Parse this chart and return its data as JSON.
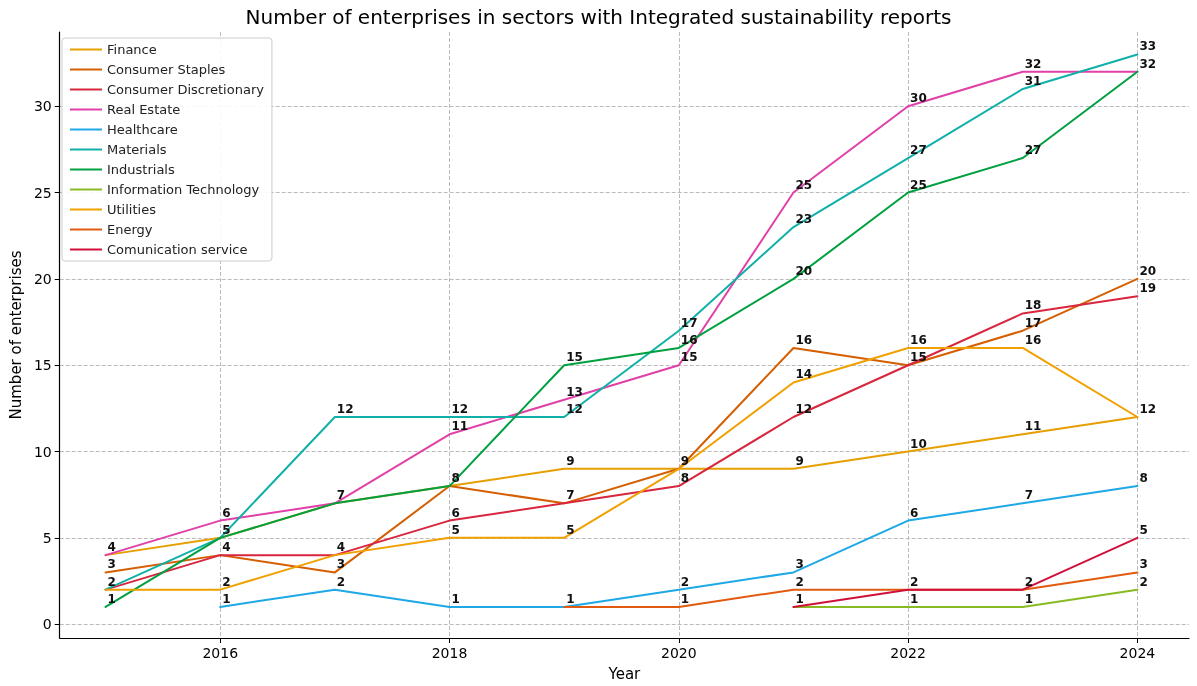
{
  "chart_data": {
    "type": "line",
    "title": "Number of enterprises in sectors with Integrated sustainability reports",
    "xlabel": "Year",
    "ylabel": "Number of enterprises",
    "x": [
      2015,
      2016,
      2017,
      2018,
      2019,
      2020,
      2021,
      2022,
      2023,
      2024
    ],
    "xlim": [
      2014.6,
      2024.45
    ],
    "xticks": [
      2016,
      2018,
      2020,
      2022,
      2024
    ],
    "ylim": [
      -0.8,
      34.3
    ],
    "yticks": [
      0,
      5,
      10,
      15,
      20,
      25,
      30
    ],
    "grid": true,
    "legend": "top left",
    "line_style": "solid",
    "series": [
      {
        "name": "Finance",
        "color": "#e69f00",
        "values": [
          4,
          5,
          7,
          8,
          9,
          9,
          9,
          10,
          11,
          12
        ],
        "value_labels": [
          "4",
          "5",
          "7",
          "8",
          "9",
          "9",
          "9",
          "10",
          "11",
          "12"
        ]
      },
      {
        "name": "Consumer Staples",
        "color": "#d55e00",
        "values": [
          3,
          4,
          3,
          8,
          7,
          9,
          16,
          15,
          17,
          20
        ],
        "value_labels": [
          "3",
          "4",
          "3",
          null,
          "7",
          null,
          "16",
          "15",
          "17",
          "20"
        ]
      },
      {
        "name": "Consumer Discretionary",
        "color": "#d7263d",
        "values": [
          2,
          4,
          4,
          6,
          7,
          8,
          12,
          15,
          18,
          19
        ],
        "value_labels": [
          "2",
          null,
          "4",
          "6",
          null,
          "8",
          "12",
          null,
          "18",
          "19"
        ]
      },
      {
        "name": "Real Estate",
        "color": "#e040a8",
        "values": [
          4,
          6,
          7,
          11,
          13,
          15,
          25,
          30,
          32,
          32
        ],
        "value_labels": [
          null,
          "6",
          null,
          "11",
          "13",
          "15",
          "25",
          "30",
          "32",
          "32"
        ]
      },
      {
        "name": "Healthcare",
        "color": "#1ea8e6",
        "values": [
          null,
          1,
          2,
          1,
          1,
          2,
          3,
          6,
          7,
          8
        ],
        "value_labels": [
          null,
          "1",
          "2",
          "1",
          "1",
          "2",
          "3",
          "6",
          "7",
          "8"
        ]
      },
      {
        "name": "Materials",
        "color": "#10b0a8",
        "values": [
          2,
          5,
          12,
          12,
          12,
          17,
          23,
          27,
          31,
          33
        ],
        "value_labels": [
          null,
          null,
          "12",
          "12",
          "12",
          "17",
          "23",
          "27",
          "31",
          "33"
        ]
      },
      {
        "name": "Industrials",
        "color": "#00a040",
        "values": [
          1,
          5,
          7,
          8,
          15,
          16,
          20,
          25,
          27,
          32
        ],
        "value_labels": [
          "1",
          null,
          null,
          null,
          "15",
          "16",
          "20",
          "25",
          "27",
          null
        ]
      },
      {
        "name": "Information Technology",
        "color": "#88bb22",
        "values": [
          null,
          null,
          null,
          null,
          null,
          null,
          1,
          1,
          1,
          2
        ],
        "value_labels": [
          null,
          null,
          null,
          null,
          null,
          null,
          "1",
          "1",
          "1",
          "2"
        ]
      },
      {
        "name": "Utilities",
        "color": "#f0a000",
        "values": [
          2,
          2,
          4,
          5,
          5,
          9,
          14,
          16,
          16,
          12
        ],
        "value_labels": [
          null,
          "2",
          null,
          "5",
          "5",
          null,
          "14",
          "16",
          "16",
          null
        ]
      },
      {
        "name": "Energy",
        "color": "#e05a10",
        "values": [
          null,
          null,
          null,
          null,
          1,
          1,
          2,
          2,
          2,
          3
        ],
        "value_labels": [
          null,
          null,
          null,
          null,
          null,
          "1",
          "2",
          "2",
          "2",
          "3"
        ]
      },
      {
        "name": "Comunication service",
        "color": "#d0103a",
        "values": [
          null,
          null,
          null,
          null,
          null,
          null,
          1,
          2,
          2,
          5
        ],
        "value_labels": [
          null,
          null,
          null,
          null,
          null,
          null,
          null,
          null,
          null,
          "5"
        ]
      }
    ]
  }
}
